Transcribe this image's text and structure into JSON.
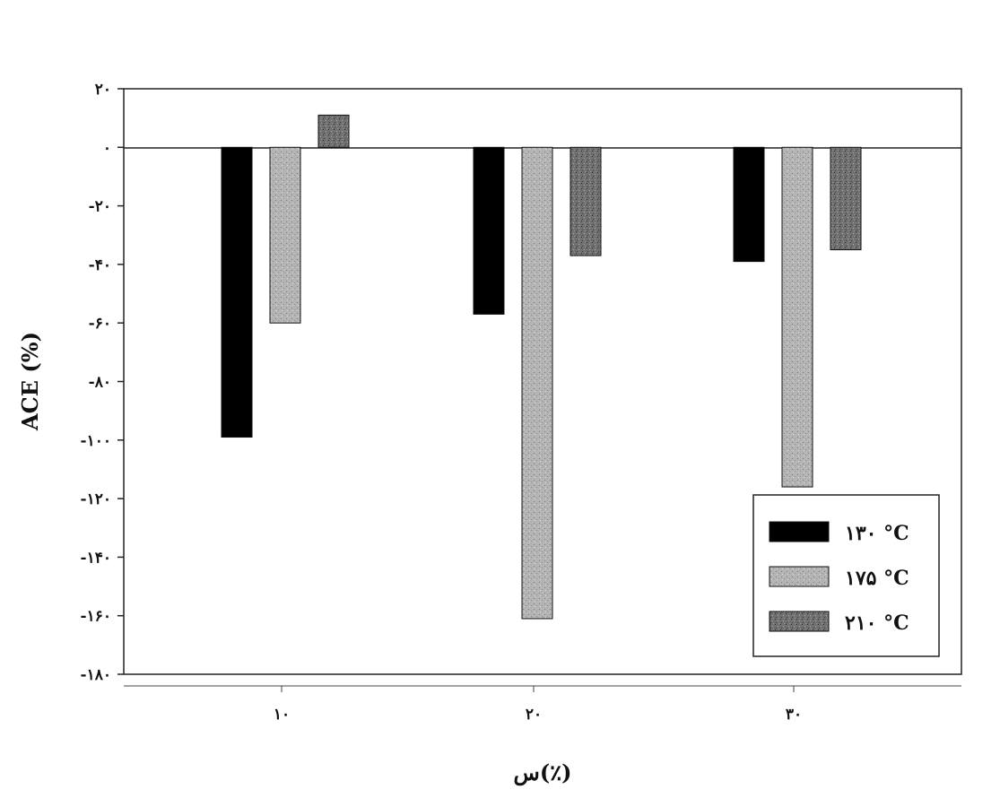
{
  "chart_data": {
    "type": "bar",
    "title": "",
    "xlabel": "س(٪)",
    "ylabel": "ACE (%)",
    "categories": [
      "۱۰",
      "۲۰",
      "۳۰"
    ],
    "series": [
      {
        "name": "۱۳۰ °C",
        "values": [
          -99,
          -57,
          -39
        ],
        "color": "#000000",
        "pattern": "solid"
      },
      {
        "name": "۱۷۵ °C",
        "values": [
          -60,
          -161,
          -116
        ],
        "color": "#b0b0b0",
        "pattern": "speckle-light"
      },
      {
        "name": "۲۱۰ °C",
        "values": [
          11,
          -37,
          -35
        ],
        "color": "#6a6a6a",
        "pattern": "speckle-dark"
      }
    ],
    "ylim": [
      -180,
      20
    ],
    "yticks": [
      20,
      0,
      -20,
      -40,
      -60,
      -80,
      -100,
      -120,
      -140,
      -160,
      -180
    ],
    "ytick_labels": [
      "۲۰",
      "۰",
      "-۲۰",
      "-۴۰",
      "-۶۰",
      "-۸۰",
      "-۱۰۰",
      "-۱۲۰",
      "-۱۴۰",
      "-۱۶۰",
      "-۱۸۰"
    ],
    "grid": false,
    "legend_position": "bottom-right"
  }
}
